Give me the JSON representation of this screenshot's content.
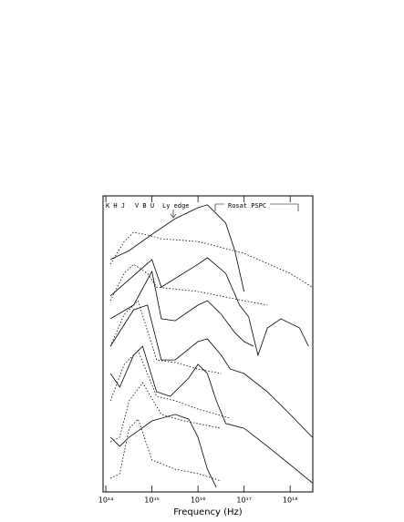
{
  "chart_data": {
    "type": "line",
    "x_label": "Frequency (Hz)",
    "xscale": "log",
    "xlim": [
      87000000000000.0,
      3.1e+18
    ],
    "xticks": [
      {
        "value": 100000000000000.0,
        "label": "10¹⁴"
      },
      {
        "value": 1000000000000000.0,
        "label": "10¹⁵"
      },
      {
        "value": 1e+16,
        "label": "10¹⁶"
      },
      {
        "value": 1e+17,
        "label": "10¹⁷"
      },
      {
        "value": 1e+18,
        "label": "10¹⁸"
      }
    ],
    "ylim": [
      0,
      100
    ],
    "annotations": [
      "K H J",
      "V B U",
      "Ly edge",
      "Rosat PSPC"
    ],
    "series": [
      {
        "color": "#000",
        "style": "solid",
        "x": [
          126000000000000.0,
          320000000000000.0,
          1000000000000000.0,
          3200000000000000.0,
          1e+16,
          1.6e+16,
          4e+16,
          6.3e+16,
          1e+17
        ],
        "values": [
          78.5,
          81.5,
          87,
          92.3,
          96,
          97,
          90.8,
          81.5,
          67.7
        ]
      },
      {
        "color": "#000",
        "style": "solid",
        "x": [
          126000000000000.0,
          1000000000000000.0,
          1600000000000000.0,
          1e+16,
          1.6e+16,
          4e+16,
          8e+16,
          1.26e+17,
          1.6e+17,
          2e+17,
          3.2e+17,
          6.3e+17,
          1.6e+18,
          2.5e+18
        ],
        "values": [
          66.2,
          78.5,
          69.2,
          76.9,
          79.1,
          73.8,
          63.1,
          59.1,
          52.3,
          46.2,
          55.4,
          58.5,
          55.4,
          49.2
        ]
      },
      {
        "color": "#000",
        "style": "solid",
        "x": [
          126000000000000.0,
          400000000000000.0,
          1000000000000000.0,
          1600000000000000.0,
          3200000000000000.0,
          1e+16,
          1.6e+16,
          3.2e+16,
          6.3e+16,
          1e+17,
          1.6e+17
        ],
        "values": [
          58.5,
          63.1,
          74.5,
          58.5,
          57.8,
          63.1,
          64.6,
          60,
          53.8,
          50.8,
          49.2
        ]
      },
      {
        "color": "#000",
        "style": "solid",
        "x": [
          126000000000000.0,
          400000000000000.0,
          800000000000000.0,
          1600000000000000.0,
          3200000000000000.0,
          1e+16,
          1.6e+16,
          3.2e+16,
          5e+16,
          1e+17,
          3.2e+17,
          1e+18,
          3e+18
        ],
        "values": [
          49.2,
          61.5,
          63.1,
          44.6,
          44.6,
          50.8,
          51.7,
          46.2,
          41.5,
          40,
          33.8,
          26.2,
          18.5
        ]
      },
      {
        "color": "#000",
        "style": "solid",
        "x": [
          126000000000000.0,
          200000000000000.0,
          400000000000000.0,
          630000000000000.0,
          1260000000000000.0,
          2500000000000000.0,
          6300000000000000.0,
          1e+16,
          1.6e+16,
          2.5e+16,
          4e+16,
          1e+17,
          3.2e+17,
          1e+18,
          3e+18
        ],
        "values": [
          40,
          35.4,
          46.2,
          49.2,
          33.8,
          32.3,
          38.5,
          43.1,
          40,
          30.8,
          23.1,
          21.5,
          15.4,
          9.2,
          3.1
        ]
      },
      {
        "color": "#000",
        "style": "solid",
        "x": [
          126000000000000.0,
          200000000000000.0,
          320000000000000.0,
          500000000000000.0,
          1000000000000000.0,
          3200000000000000.0,
          6300000000000000.0,
          1e+16,
          1.6e+16,
          2.5e+16
        ],
        "values": [
          18.5,
          15.4,
          18.5,
          20.6,
          24,
          26.2,
          24.6,
          18.5,
          7.7,
          1.5
        ]
      },
      {
        "color": "#000",
        "style": "dotted",
        "x": [
          126000000000000.0,
          250000000000000.0,
          400000000000000.0,
          800000000000000.0,
          1600000000000000.0,
          1e+16,
          1e+17,
          1e+18,
          3e+18
        ],
        "values": [
          76.9,
          84.6,
          87.7,
          86.8,
          85.5,
          84.6,
          80.6,
          73.8,
          69.2
        ]
      },
      {
        "color": "#000",
        "style": "dotted",
        "x": [
          126000000000000.0,
          250000000000000.0,
          400000000000000.0,
          800000000000000.0,
          1260000000000000.0,
          1e+16,
          1e+17,
          3.2e+17
        ],
        "values": [
          64.6,
          73.8,
          76.9,
          73.8,
          69.2,
          67.7,
          64.6,
          63.1
        ]
      },
      {
        "color": "#000",
        "style": "dotted",
        "x": [
          126000000000000.0,
          250000000000000.0,
          500000000000000.0,
          1260000000000000.0,
          3200000000000000.0,
          1e+16,
          3.2e+16
        ],
        "values": [
          49.2,
          60,
          64.6,
          44.6,
          43.7,
          41.5,
          40
        ]
      },
      {
        "color": "#000",
        "style": "dotted",
        "x": [
          126000000000000.0,
          250000000000000.0,
          500000000000000.0,
          1260000000000000.0,
          3200000000000000.0,
          1e+16,
          5e+16
        ],
        "values": [
          30.8,
          43.1,
          47.7,
          32.3,
          30.8,
          28,
          24.9
        ]
      },
      {
        "color": "#000",
        "style": "dotted",
        "x": [
          126000000000000.0,
          200000000000000.0,
          320000000000000.0,
          630000000000000.0,
          1600000000000000.0,
          5000000000000000.0,
          3.2e+16
        ],
        "values": [
          16.9,
          18.5,
          30.8,
          36.9,
          26.2,
          24,
          21.5
        ]
      },
      {
        "color": "#000",
        "style": "dotted",
        "x": [
          126000000000000.0,
          200000000000000.0,
          320000000000000.0,
          500000000000000.0,
          1000000000000000.0,
          3200000000000000.0,
          1e+16,
          3.2e+16
        ],
        "values": [
          4.6,
          6.2,
          21.5,
          24.6,
          10.8,
          7.7,
          6.2,
          3.7
        ]
      }
    ]
  }
}
